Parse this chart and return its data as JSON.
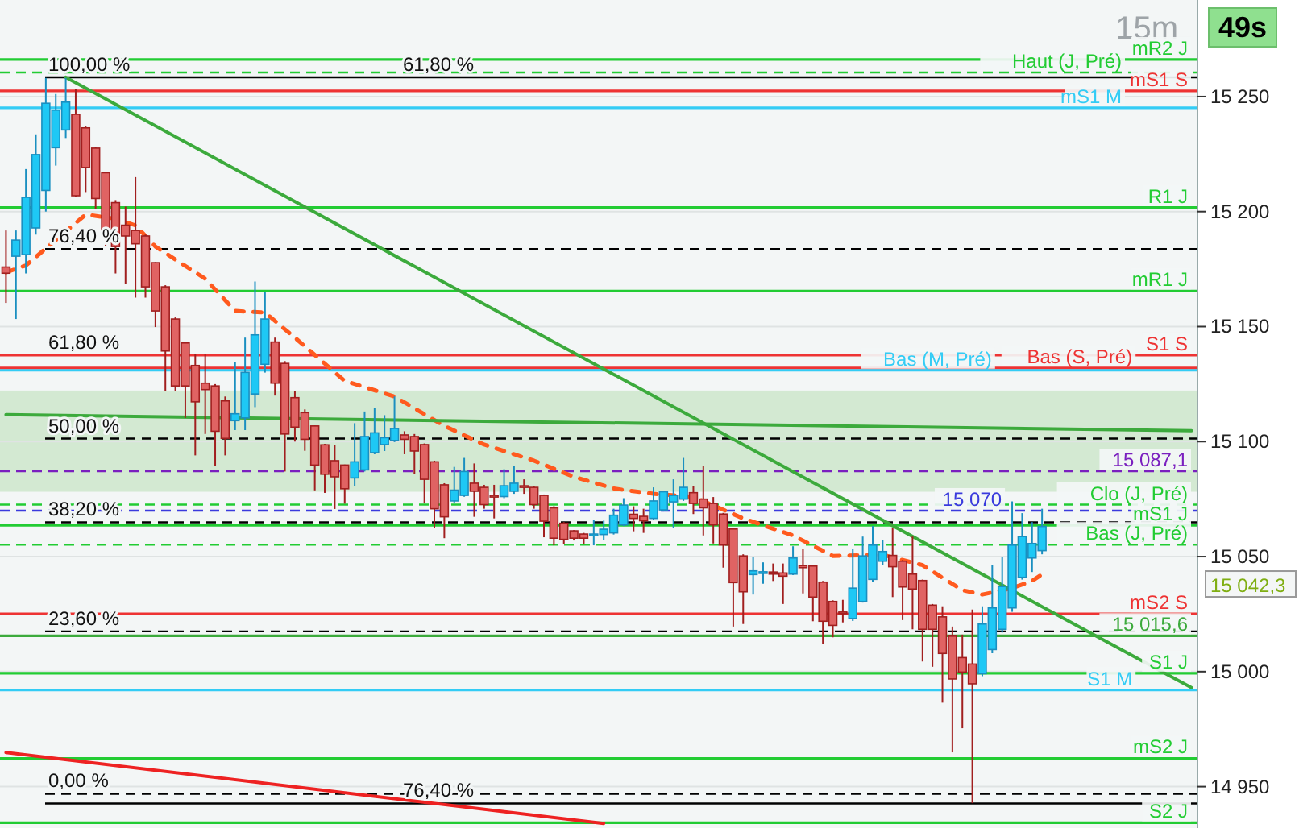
{
  "chart_data": {
    "type": "candlestick",
    "title": "15m",
    "categories": [
      null,
      null,
      null,
      null,
      null,
      null,
      null,
      null,
      null,
      null,
      null,
      null,
      null,
      null,
      null,
      null,
      null,
      null,
      null,
      null,
      null,
      null,
      null,
      null,
      null,
      null,
      null,
      null,
      null,
      null,
      null,
      null,
      null,
      null,
      null,
      null,
      null,
      null,
      null,
      null,
      null,
      null,
      null,
      null,
      null,
      null,
      null,
      null,
      null,
      null,
      null,
      null,
      null,
      null,
      null,
      null,
      null,
      null,
      null,
      null,
      null,
      null,
      null,
      null,
      null,
      null,
      null,
      null,
      null,
      null,
      null,
      null,
      null,
      null,
      null,
      null,
      null,
      null,
      null,
      null,
      null,
      null,
      null,
      null,
      null,
      null,
      null,
      null,
      null,
      null,
      null,
      null,
      null,
      null,
      null,
      null,
      null,
      null,
      null,
      null,
      null,
      null,
      null,
      null,
      null,
      null,
      null,
      null,
      null,
      null,
      null,
      null,
      null,
      null,
      null,
      null,
      null,
      null,
      null,
      null
    ],
    "ohlc": [
      [
        15175.9,
        15191.8,
        15160.3,
        15173.2
      ],
      [
        15180.6,
        15191.8,
        15153.3,
        15187.6
      ],
      [
        15181.3,
        15218.5,
        15173.1,
        15206.2
      ],
      [
        15192.9,
        15233.6,
        15190,
        15224.8
      ],
      [
        15209.2,
        15258.1,
        15200,
        15247.1
      ],
      [
        15227.8,
        15251.1,
        15220,
        15244.1
      ],
      [
        15235.5,
        15258.1,
        15232,
        15247.6
      ],
      [
        15242.3,
        15253.4,
        15206.2,
        15206.9
      ],
      [
        15236.4,
        15237,
        15208.5,
        15219.2
      ],
      [
        15227.6,
        15228,
        15201,
        15205.7
      ],
      [
        15216.9,
        15217,
        15185,
        15190.6
      ],
      [
        15203.9,
        15205,
        15173.1,
        15184.8
      ],
      [
        15194.1,
        15202.2,
        15168.5,
        15189.4
      ],
      [
        15191.8,
        15215,
        15162.6,
        15186
      ],
      [
        15189.4,
        15190,
        15162.6,
        15167.3
      ],
      [
        15177.8,
        15178,
        15149.8,
        15156.8
      ],
      [
        15167.3,
        15168,
        15121.9,
        15139.4
      ],
      [
        15153.3,
        15154,
        15121.9,
        15124.2
      ],
      [
        15142.9,
        15143,
        15110.3,
        15124.2
      ],
      [
        15133.1,
        15138.2,
        15094,
        15117.3
      ],
      [
        15125.4,
        15138,
        15103.3,
        15122.6
      ],
      [
        15124.2,
        15125,
        15089.3,
        15104.5
      ],
      [
        15117.7,
        15119.6,
        15094,
        15101.4
      ],
      [
        15109.1,
        15134.7,
        15105,
        15112.1
      ],
      [
        15110.3,
        15145.2,
        15105,
        15130.1
      ],
      [
        15120.7,
        15169.6,
        15115,
        15146.4
      ],
      [
        15133.6,
        15165,
        15130,
        15153.3
      ],
      [
        15143.3,
        15145.2,
        15120,
        15125.4
      ],
      [
        15134,
        15135,
        15087,
        15103.3
      ],
      [
        15119.1,
        15122,
        15100,
        15106.3
      ],
      [
        15112.6,
        15114,
        15096,
        15101
      ],
      [
        15106.8,
        15107,
        15078.8,
        15089.8
      ],
      [
        15098.6,
        15099,
        15077.7,
        15085.8
      ],
      [
        15091.7,
        15098.6,
        15070.7,
        15084.7
      ],
      [
        15089.8,
        15090,
        15073,
        15079.5
      ],
      [
        15084.2,
        15108,
        15080.5,
        15091.2
      ],
      [
        15087.7,
        15113.1,
        15087,
        15102.2
      ],
      [
        15095.2,
        15114.5,
        15094.5,
        15103.8
      ],
      [
        15098.7,
        15111.5,
        15095.9,
        15101.7
      ],
      [
        15100.5,
        15119.6,
        15099.8,
        15105.7
      ],
      [
        15102.9,
        15104.5,
        15094.5,
        15101
      ],
      [
        15102.2,
        15103.3,
        15085.9,
        15095.9
      ],
      [
        15098.7,
        15099.2,
        15073.1,
        15083.6
      ],
      [
        15091.2,
        15091.7,
        15062.6,
        15070.8
      ],
      [
        15081.2,
        15081.9,
        15058,
        15067.3
      ],
      [
        15074.2,
        15089,
        15073.1,
        15078.9
      ],
      [
        15076.6,
        15092.9,
        15076,
        15087
      ],
      [
        15081.9,
        15090.5,
        15067.3,
        15078.4
      ],
      [
        15080.1,
        15081.2,
        15070.8,
        15072.6
      ],
      [
        15076.6,
        15081.2,
        15066.6,
        15075.9
      ],
      [
        15076.1,
        15088,
        15075.4,
        15080.8
      ],
      [
        15078.4,
        15089.4,
        15077.3,
        15081.9
      ],
      [
        15080.8,
        15083.6,
        15077.3,
        15080.1
      ],
      [
        15080.1,
        15080.6,
        15070.8,
        15072.6
      ],
      [
        15076.6,
        15077,
        15058.4,
        15065.4
      ],
      [
        15071.2,
        15071.9,
        15054.9,
        15058
      ],
      [
        15064.5,
        15065,
        15055.6,
        15057.5
      ],
      [
        15061.2,
        15061.5,
        15057,
        15058
      ],
      [
        15059.8,
        15060.3,
        15055.6,
        15058
      ],
      [
        15059.1,
        15066.1,
        15054.9,
        15059.8
      ],
      [
        15059.6,
        15065.6,
        15057.2,
        15061.9
      ],
      [
        15060.3,
        15070.8,
        15059.6,
        15068
      ],
      [
        15063.8,
        15075.4,
        15063.3,
        15072.4
      ],
      [
        15068.4,
        15071.9,
        15061,
        15066.6
      ],
      [
        15067.5,
        15070.8,
        15060.3,
        15065.6
      ],
      [
        15066.6,
        15080.1,
        15066.1,
        15074.2
      ],
      [
        15070.3,
        15078.2,
        15069.6,
        15078.2
      ],
      [
        15073.8,
        15083.6,
        15062.6,
        15076.6
      ],
      [
        15075,
        15092.9,
        15074.2,
        15080.1
      ],
      [
        15077.8,
        15080.6,
        15068.5,
        15073.1
      ],
      [
        15075,
        15089.4,
        15059.2,
        15071.2
      ],
      [
        15073.1,
        15075.9,
        15055.7,
        15063.8
      ],
      [
        15068.5,
        15069,
        15045.2,
        15055
      ],
      [
        15062,
        15062.5,
        15019.6,
        15038.7
      ],
      [
        15050.3,
        15051,
        15020.7,
        15034.7
      ],
      [
        15042.2,
        15049.8,
        15033.5,
        15043.8
      ],
      [
        15042.9,
        15047.5,
        15038.2,
        15043.4
      ],
      [
        15043.3,
        15047,
        15039.4,
        15042.4
      ],
      [
        15042.9,
        15047,
        15029.4,
        15041.5
      ],
      [
        15042.4,
        15054.5,
        15042,
        15049.4
      ],
      [
        15046.1,
        15053.3,
        15034,
        15045.2
      ],
      [
        15045.9,
        15046.5,
        15021.9,
        15032.4
      ],
      [
        15038.9,
        15039.4,
        15012.1,
        15021.9
      ],
      [
        15030.5,
        15031,
        15014.9,
        15020.1
      ],
      [
        15025.9,
        15031.2,
        15021.4,
        15025.4
      ],
      [
        15023.1,
        15053.3,
        15022,
        15036.3
      ],
      [
        15030.5,
        15058.7,
        15030,
        15050.3
      ],
      [
        15040.1,
        15063.3,
        15039,
        15055
      ],
      [
        15048,
        15057.3,
        15046.4,
        15052.2
      ],
      [
        15050.5,
        15062.6,
        15032.4,
        15045.6
      ],
      [
        15048,
        15048.5,
        15022.4,
        15036.8
      ],
      [
        15042.4,
        15058.7,
        15018.4,
        15035.9
      ],
      [
        15039.6,
        15040,
        15004.4,
        15018.4
      ],
      [
        15028.9,
        15029.4,
        15002.1,
        15018.4
      ],
      [
        15023.8,
        15028.4,
        14986.5,
        15007.9
      ],
      [
        15015.4,
        15019.6,
        14964.9,
        14996.8
      ],
      [
        15006.1,
        15016.1,
        14975.4,
        14999.8
      ],
      [
        15003.3,
        15027,
        14942.8,
        14994.7
      ],
      [
        14999.1,
        15028.4,
        14998,
        15020.7
      ],
      [
        15009.6,
        15046.3,
        15008,
        15027.7
      ],
      [
        15018.4,
        15049.8,
        15017,
        15037
      ],
      [
        15027.7,
        15074,
        15026,
        15055
      ],
      [
        15041,
        15068.9,
        15040,
        15058.7
      ],
      [
        15049.4,
        15065,
        15043.3,
        15055.7
      ],
      [
        15052.6,
        15070.8,
        15051,
        15063.1
      ],
      null,
      null,
      null,
      null,
      null,
      null,
      null,
      null,
      null,
      null,
      null,
      null,
      null,
      null,
      null
    ],
    "series": [
      {
        "type": "line",
        "color": "#ff5a1e",
        "line_style": "dashed",
        "values": [
          15173.6,
          null,
          15176.6,
          null,
          null,
          null,
          null,
          null,
          15198.7,
          null,
          null,
          15196.9,
          null,
          15194,
          null,
          15184.8,
          null,
          null,
          null,
          null,
          15170.8,
          null,
          null,
          15156.8,
          null,
          null,
          15156.1,
          null,
          null,
          15145.2,
          null,
          null,
          null,
          null,
          15126.4,
          null,
          null,
          null,
          null,
          15119.6,
          null,
          null,
          null,
          null,
          15106.8,
          null,
          null,
          null,
          15098.7,
          null,
          null,
          null,
          null,
          15091.7,
          null,
          null,
          null,
          15084.7,
          null,
          null,
          null,
          15079.6,
          null,
          null,
          null,
          15077.3,
          null,
          null,
          null,
          15076,
          null,
          null,
          null,
          null,
          15066.6,
          null,
          null,
          null,
          null,
          15059.2,
          null,
          null,
          null,
          15050.3,
          null,
          null,
          null,
          null,
          15050.8,
          null,
          null,
          null,
          15046.3,
          null,
          null,
          null,
          15035.4,
          null,
          15033.5,
          null,
          null,
          15036.3,
          null,
          15039.4,
          15042.3,
          null,
          null,
          null,
          null,
          null,
          null,
          null,
          null,
          null,
          null,
          null,
          null,
          null,
          null,
          null
        ]
      },
      {
        "type": "line",
        "color": "#3caa3c",
        "line_style": "solid",
        "values": [
          null,
          null,
          null,
          null,
          null,
          null,
          15258.4,
          null,
          null,
          null,
          null,
          null,
          null,
          null,
          null,
          null,
          null,
          null,
          null,
          null,
          null,
          null,
          null,
          null,
          null,
          null,
          null,
          null,
          null,
          null,
          null,
          null,
          null,
          null,
          null,
          null,
          null,
          null,
          null,
          null,
          null,
          null,
          null,
          null,
          null,
          null,
          null,
          null,
          null,
          null,
          null,
          null,
          null,
          null,
          null,
          null,
          null,
          null,
          null,
          null,
          null,
          null,
          null,
          null,
          null,
          null,
          null,
          null,
          null,
          null,
          null,
          null,
          null,
          null,
          null,
          null,
          null,
          null,
          null,
          null,
          null,
          null,
          null,
          null,
          null,
          null,
          null,
          null,
          null,
          null,
          null,
          null,
          null,
          null,
          null,
          null,
          null,
          null,
          null,
          null,
          null,
          null,
          null,
          null,
          null,
          null,
          null,
          null,
          null,
          null,
          null,
          null,
          null,
          null,
          null,
          null,
          null,
          null,
          null,
          14993
        ]
      },
      {
        "type": "line",
        "color": "#3caa3c",
        "line_style": "solid",
        "values": [
          15111.7,
          null,
          null,
          null,
          null,
          null,
          null,
          null,
          null,
          null,
          null,
          null,
          null,
          null,
          null,
          null,
          null,
          null,
          null,
          null,
          null,
          null,
          null,
          null,
          null,
          null,
          null,
          null,
          null,
          null,
          null,
          null,
          null,
          null,
          null,
          null,
          null,
          null,
          null,
          null,
          null,
          null,
          null,
          null,
          null,
          null,
          null,
          null,
          null,
          null,
          null,
          null,
          null,
          null,
          null,
          null,
          null,
          null,
          null,
          null,
          null,
          null,
          null,
          null,
          null,
          null,
          null,
          null,
          null,
          null,
          null,
          null,
          null,
          null,
          null,
          null,
          null,
          null,
          null,
          null,
          null,
          null,
          null,
          null,
          null,
          null,
          null,
          null,
          null,
          null,
          null,
          null,
          null,
          null,
          null,
          null,
          null,
          null,
          null,
          null,
          null,
          null,
          null,
          null,
          null,
          null,
          null,
          null,
          null,
          null,
          null,
          null,
          null,
          null,
          null,
          null,
          null,
          null,
          null,
          15104.7
        ]
      },
      {
        "type": "line",
        "color": "#ee2222",
        "line_style": "solid",
        "values": [
          14964.8,
          null,
          null,
          null,
          null,
          null,
          null,
          null,
          null,
          null,
          null,
          null,
          null,
          null,
          null,
          null,
          null,
          null,
          null,
          null,
          null,
          null,
          null,
          null,
          null,
          null,
          null,
          null,
          null,
          null,
          null,
          null,
          null,
          null,
          null,
          null,
          null,
          null,
          null,
          null,
          null,
          null,
          null,
          null,
          null,
          null,
          null,
          null,
          null,
          null,
          null,
          null,
          null,
          null,
          null,
          null,
          null,
          null,
          null,
          null,
          14934,
          null,
          null,
          null,
          null,
          null,
          null,
          null,
          null,
          null,
          null,
          null,
          null,
          null,
          null,
          null,
          null,
          null,
          null,
          null,
          null,
          null,
          null,
          null,
          null,
          null,
          null,
          null,
          null,
          null,
          null,
          null,
          null,
          null,
          null,
          null,
          null,
          null,
          null,
          null,
          null,
          null,
          null,
          null,
          null,
          null,
          null,
          null,
          null,
          null,
          null,
          null,
          null,
          null,
          null,
          null,
          null,
          null,
          null,
          null
        ]
      }
    ],
    "ylim": [
      14932,
      15292
    ],
    "yticks": [
      {
        "value": 14950,
        "label": "14 950"
      },
      {
        "value": 15000,
        "label": "15 000"
      },
      {
        "value": 15050,
        "label": "15 050"
      },
      {
        "value": 15100,
        "label": "15 100"
      },
      {
        "value": 15150,
        "label": "15 150"
      },
      {
        "value": 15200,
        "label": "15 200"
      },
      {
        "value": 15250,
        "label": "15 250"
      }
    ],
    "tick_labels": "y",
    "grid": "y",
    "bands": [
      {
        "axis": "y",
        "from": 15078.2,
        "to": 15122.2,
        "color": "#d3e9d2"
      }
    ],
    "ref_lines": [
      {
        "axis": "y",
        "value": 15258.4,
        "color": "#000000",
        "line_style": "solid"
      },
      {
        "axis": "y",
        "value": 15183.7,
        "color": "#000000",
        "line_style": "dashed"
      },
      {
        "axis": "y",
        "value": 15137.6,
        "color": "#000000",
        "line_style": "dashed"
      },
      {
        "axis": "y",
        "value": 15101.3,
        "color": "#000000",
        "line_style": "dashed"
      },
      {
        "axis": "y",
        "value": 15064.9,
        "color": "#000000",
        "line_style": "dashed"
      },
      {
        "axis": "y",
        "value": 15017.5,
        "color": "#000000",
        "line_style": "dashed"
      },
      {
        "axis": "y",
        "value": 14946.9,
        "color": "#000000",
        "line_style": "dashed"
      },
      {
        "axis": "y",
        "value": 14942.7,
        "color": "#000000",
        "line_style": "solid"
      },
      {
        "axis": "y",
        "value": 15266.1,
        "label": "mR2 J",
        "color": "#22cc33",
        "line_style": "solid"
      },
      {
        "axis": "y",
        "value": 15260.5,
        "label": "Haut (J, Pré)",
        "color": "#22cc33",
        "line_style": "dashed"
      },
      {
        "axis": "y",
        "value": 15252.5,
        "label": "mS1 S",
        "color": "#ee3333",
        "line_style": "solid"
      },
      {
        "axis": "y",
        "value": 15245.1,
        "label": "mS1 M",
        "color": "#33ccf5",
        "line_style": "solid"
      },
      {
        "axis": "y",
        "value": 15201.8,
        "label": "R1 J",
        "color": "#22cc33",
        "line_style": "solid"
      },
      {
        "axis": "y",
        "value": 15165.5,
        "label": "mR1 J",
        "color": "#22cc33",
        "line_style": "solid"
      },
      {
        "axis": "y",
        "value": 15137.6,
        "label": "S1 S",
        "color": "#ee3333",
        "line_style": "solid"
      },
      {
        "axis": "y",
        "value": 15132,
        "label": "Bas (S, Pré)",
        "color": "#ee3333",
        "line_style": "solid"
      },
      {
        "axis": "y",
        "value": 15131,
        "label": "Bas (M, Pré)",
        "color": "#33ccf5",
        "line_style": "solid"
      },
      {
        "axis": "y",
        "value": 15087.1,
        "label": "15 087,1",
        "color": "#7a1fbf",
        "line_style": "dashed"
      },
      {
        "axis": "y",
        "value": 15072.6,
        "label": "Clo (J, Pré)",
        "color": "#22cc33",
        "line_style": "dashed"
      },
      {
        "axis": "y",
        "value": 15070,
        "label": "15 070",
        "color": "#3a3add",
        "line_style": "dashed"
      },
      {
        "axis": "y",
        "value": 15063.6,
        "label": "mS1 J",
        "color": "#22cc33",
        "line_style": "solid"
      },
      {
        "axis": "y",
        "value": 15055.2,
        "label": "Bas (J, Pré)",
        "color": "#22cc33",
        "line_style": "dashed"
      },
      {
        "axis": "y",
        "value": 15025.1,
        "label": "mS2 S",
        "color": "#ee3333",
        "line_style": "solid"
      },
      {
        "axis": "y",
        "value": 15015.6,
        "label": "15 015,6",
        "color": "#3caa3c",
        "line_style": "solid"
      },
      {
        "axis": "y",
        "value": 14999.3,
        "label": "S1 J",
        "color": "#22cc33",
        "line_style": "solid"
      },
      {
        "axis": "y",
        "value": 14992,
        "label": "S1 M",
        "color": "#33ccf5",
        "line_style": "solid"
      },
      {
        "axis": "y",
        "value": 14962.3,
        "label": "mS2 J",
        "color": "#22cc33",
        "line_style": "solid"
      },
      {
        "axis": "y",
        "value": 14934.3,
        "label": "S2 J",
        "color": "#22cc33",
        "line_style": "solid"
      }
    ],
    "annotations": [
      "49s",
      "15 042,3",
      {
        "text": "100,00 %",
        "y": 15258.4
      },
      {
        "text": "61,80 %",
        "y": 15258.4
      },
      {
        "text": "76,40 %",
        "y": 15183.7
      },
      {
        "text": "61,80 %",
        "y": 15137.6
      },
      {
        "text": "50,00 %",
        "y": 15101.3
      },
      {
        "text": "38,20 %",
        "y": 15064.9
      },
      {
        "text": "23,60 %",
        "y": 15017.5
      },
      {
        "text": "0,00 %",
        "y": 14946.9
      },
      {
        "text": "76,40 %",
        "y": 14942.7
      }
    ]
  }
}
